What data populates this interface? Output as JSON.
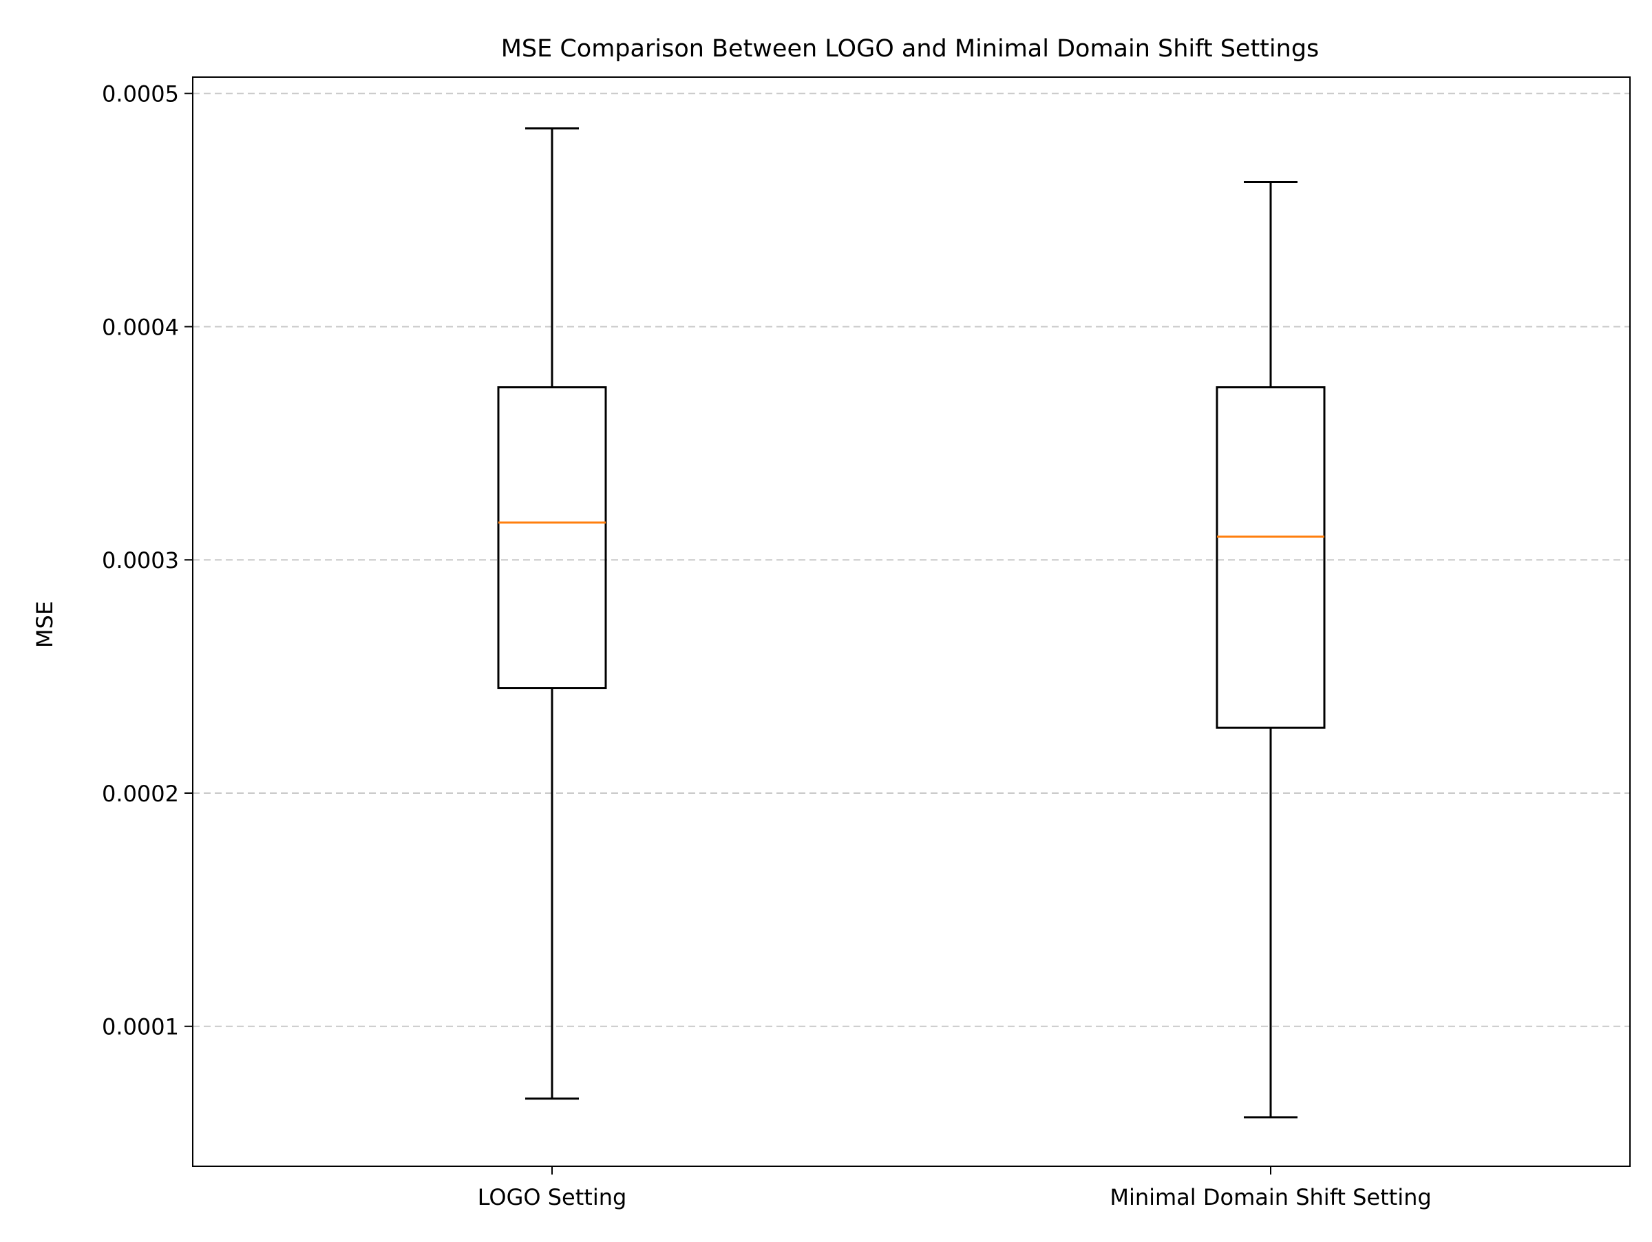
{
  "chart_data": {
    "type": "box",
    "title": "MSE Comparison Between LOGO and Minimal Domain Shift Settings",
    "xlabel": "",
    "ylabel": "MSE",
    "ylim": [
      4e-05,
      0.000507
    ],
    "y_ticks": [
      {
        "value": 0.0001,
        "label": "0.0001"
      },
      {
        "value": 0.0002,
        "label": "0.0002"
      },
      {
        "value": 0.0003,
        "label": "0.0003"
      },
      {
        "value": 0.0004,
        "label": "0.0004"
      },
      {
        "value": 0.0005,
        "label": "0.0005"
      }
    ],
    "grid": {
      "axis": "y",
      "style": "dashed",
      "color": "#c8c8c8"
    },
    "categories": [
      "LOGO Setting",
      "Minimal Domain Shift Setting"
    ],
    "boxes": [
      {
        "category": "LOGO Setting",
        "whisker_low": 6.9e-05,
        "q1": 0.000245,
        "median": 0.000316,
        "q3": 0.000374,
        "whisker_high": 0.000485
      },
      {
        "category": "Minimal Domain Shift Setting",
        "whisker_low": 6.1e-05,
        "q1": 0.000228,
        "median": 0.00031,
        "q3": 0.000374,
        "whisker_high": 0.000462
      }
    ],
    "colors": {
      "box": "#000000",
      "median": "#ff7f0e",
      "grid": "#c8c8c8",
      "axes": "#000000"
    }
  }
}
